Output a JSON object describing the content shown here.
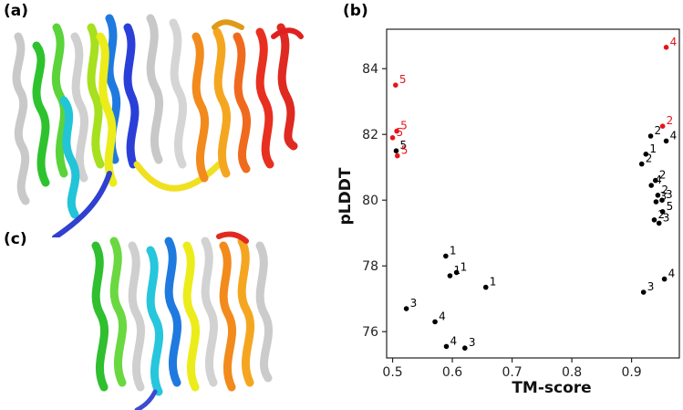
{
  "panels": {
    "a": "(a)",
    "b": "(b)",
    "c": "(c)"
  },
  "chart_data": {
    "type": "scatter",
    "title": "",
    "xlabel": "TM-score",
    "ylabel": "pLDDT",
    "xlim": [
      0.49,
      0.98
    ],
    "ylim": [
      75.2,
      85.2
    ],
    "xticks": [
      "0.5",
      "0.6",
      "0.7",
      "0.8",
      "0.9"
    ],
    "yticks": [
      "76",
      "78",
      "80",
      "82",
      "84"
    ],
    "grid": false,
    "colors": {
      "black": "#000000",
      "red": "#e8141a"
    },
    "points": [
      {
        "x": 0.505,
        "y": 83.5,
        "label": "5",
        "color": "red"
      },
      {
        "x": 0.507,
        "y": 82.1,
        "label": "5",
        "color": "red"
      },
      {
        "x": 0.5,
        "y": 81.9,
        "label": "5",
        "color": "red"
      },
      {
        "x": 0.506,
        "y": 81.5,
        "label": "5",
        "color": "black"
      },
      {
        "x": 0.508,
        "y": 81.35,
        "label": "5",
        "color": "red"
      },
      {
        "x": 0.589,
        "y": 78.3,
        "label": "1",
        "color": "black"
      },
      {
        "x": 0.596,
        "y": 77.7,
        "label": "1",
        "color": "black"
      },
      {
        "x": 0.607,
        "y": 77.8,
        "label": "1",
        "color": "black"
      },
      {
        "x": 0.656,
        "y": 77.35,
        "label": "1",
        "color": "black"
      },
      {
        "x": 0.523,
        "y": 76.7,
        "label": "3",
        "color": "black"
      },
      {
        "x": 0.571,
        "y": 76.3,
        "label": "4",
        "color": "black"
      },
      {
        "x": 0.59,
        "y": 75.55,
        "label": "4",
        "color": "black"
      },
      {
        "x": 0.621,
        "y": 75.5,
        "label": "3",
        "color": "black"
      },
      {
        "x": 0.958,
        "y": 84.65,
        "label": "4",
        "color": "red"
      },
      {
        "x": 0.952,
        "y": 82.25,
        "label": "2",
        "color": "red"
      },
      {
        "x": 0.932,
        "y": 81.95,
        "label": "2",
        "color": "black"
      },
      {
        "x": 0.958,
        "y": 81.8,
        "label": "4",
        "color": "black"
      },
      {
        "x": 0.924,
        "y": 81.4,
        "label": "1",
        "color": "black"
      },
      {
        "x": 0.917,
        "y": 81.1,
        "label": "2",
        "color": "black"
      },
      {
        "x": 0.94,
        "y": 80.6,
        "label": "2",
        "color": "black"
      },
      {
        "x": 0.933,
        "y": 80.45,
        "label": "4",
        "color": "black"
      },
      {
        "x": 0.944,
        "y": 80.15,
        "label": "2",
        "color": "black"
      },
      {
        "x": 0.951,
        "y": 80.0,
        "label": "3",
        "color": "black"
      },
      {
        "x": 0.941,
        "y": 79.95,
        "label": "3",
        "color": "black"
      },
      {
        "x": 0.952,
        "y": 79.65,
        "label": "5",
        "color": "black"
      },
      {
        "x": 0.938,
        "y": 79.4,
        "label": "2",
        "color": "black"
      },
      {
        "x": 0.946,
        "y": 79.3,
        "label": "3",
        "color": "black"
      },
      {
        "x": 0.92,
        "y": 77.2,
        "label": "3",
        "color": "black"
      },
      {
        "x": 0.955,
        "y": 77.6,
        "label": "4",
        "color": "black"
      }
    ]
  }
}
